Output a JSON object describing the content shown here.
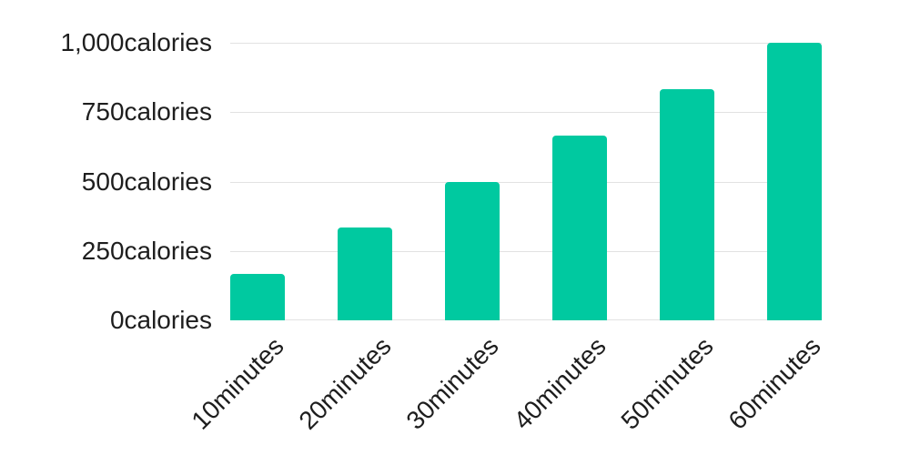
{
  "chart_data": {
    "type": "bar",
    "title": "",
    "xlabel": "",
    "ylabel": "",
    "categories": [
      "10minutes",
      "20minutes",
      "30minutes",
      "40minutes",
      "50minutes",
      "60minutes"
    ],
    "values": [
      167,
      333,
      500,
      667,
      833,
      1000
    ],
    "yticks": [
      {
        "value": 1000,
        "label": "1,000calories"
      },
      {
        "value": 750,
        "label": "750calories"
      },
      {
        "value": 500,
        "label": "500calories"
      },
      {
        "value": 250,
        "label": "250calories"
      },
      {
        "value": 0,
        "label": "0calories"
      }
    ],
    "ylim": [
      0,
      1000
    ],
    "grid": true,
    "legend": false,
    "colors": {
      "bar": "#00c9a0",
      "gridline": "#e2e2e2",
      "tick_text": "#1e1e1e",
      "background": "#ffffff"
    }
  }
}
